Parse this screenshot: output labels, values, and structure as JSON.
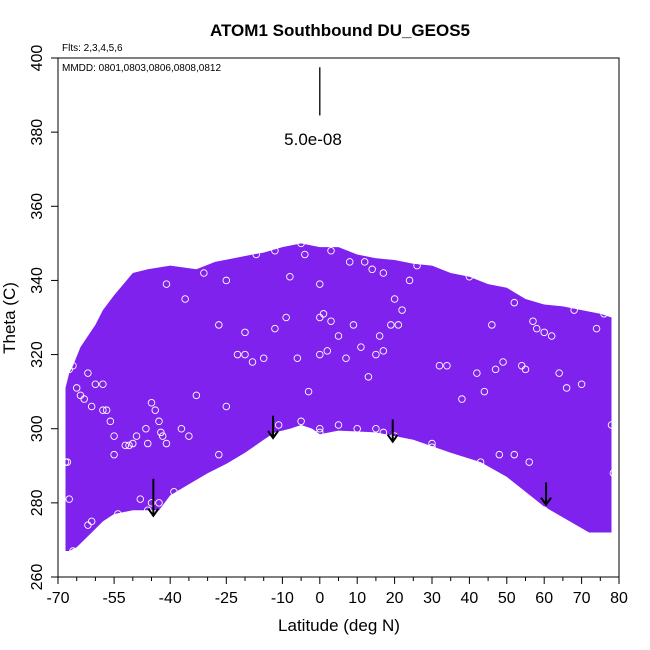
{
  "chart_data": {
    "type": "scatter",
    "title": "ATOM1 Southbound DU_GEOS5",
    "flights_label": "Flts: 2,3,4,5,6",
    "dates_label": "MMDD: 0801,0803,0806,0808,0812",
    "xlabel": "Latitude (deg N)",
    "ylabel": "Theta (C)",
    "xlim": [
      -70,
      80
    ],
    "ylim": [
      260,
      400
    ],
    "x_ticks": [
      -70,
      -55,
      -40,
      -25,
      -10,
      0,
      10,
      20,
      30,
      40,
      50,
      60,
      70,
      80
    ],
    "x_ticks_minor": [
      -65,
      -60,
      -50,
      -45,
      -35,
      -30,
      -20,
      -15,
      -5,
      5,
      15,
      25,
      35,
      45,
      55,
      65,
      75
    ],
    "y_ticks": [
      260,
      280,
      300,
      320,
      340,
      360,
      380,
      400
    ],
    "scale_label": "5.0e-08",
    "scale_bar": {
      "x": 0,
      "y_from": 384.5,
      "y_to": 397.5
    },
    "fill_color": "#7f22ee",
    "upper_boundary": [
      [
        -68,
        311
      ],
      [
        -67,
        315
      ],
      [
        -66,
        317
      ],
      [
        -64,
        322
      ],
      [
        -62,
        325
      ],
      [
        -60,
        328
      ],
      [
        -58,
        332
      ],
      [
        -55,
        336
      ],
      [
        -50,
        342
      ],
      [
        -46,
        343
      ],
      [
        -40,
        344
      ],
      [
        -33,
        343
      ],
      [
        -28,
        345
      ],
      [
        -23,
        346
      ],
      [
        -18,
        347
      ],
      [
        -15,
        347.5
      ],
      [
        -10,
        349
      ],
      [
        -5,
        350
      ],
      [
        0,
        349
      ],
      [
        5,
        349
      ],
      [
        10,
        347
      ],
      [
        15,
        346
      ],
      [
        20,
        345.5
      ],
      [
        25,
        344.5
      ],
      [
        30,
        344
      ],
      [
        35,
        342
      ],
      [
        40,
        341
      ],
      [
        45,
        339
      ],
      [
        50,
        338
      ],
      [
        55,
        335
      ],
      [
        60,
        333.5
      ],
      [
        65,
        333
      ],
      [
        70,
        332
      ],
      [
        75,
        331
      ],
      [
        78,
        330
      ]
    ],
    "lower_boundary": [
      [
        78,
        272
      ],
      [
        72,
        272
      ],
      [
        60,
        279
      ],
      [
        55,
        283
      ],
      [
        50,
        287
      ],
      [
        43,
        291
      ],
      [
        35,
        293.5
      ],
      [
        25,
        297
      ],
      [
        15,
        299
      ],
      [
        5,
        299.5
      ],
      [
        0,
        298.5
      ],
      [
        -2,
        300
      ],
      [
        -5,
        301
      ],
      [
        -8,
        300
      ],
      [
        -12,
        299
      ],
      [
        -15,
        297
      ],
      [
        -20,
        293.5
      ],
      [
        -25,
        290.5
      ],
      [
        -30,
        288
      ],
      [
        -35,
        285
      ],
      [
        -40,
        282
      ],
      [
        -43,
        278
      ],
      [
        -50,
        278
      ],
      [
        -55,
        277
      ],
      [
        -58,
        275
      ],
      [
        -61,
        272
      ],
      [
        -65,
        268
      ],
      [
        -67,
        267
      ],
      [
        -68,
        267
      ]
    ],
    "scatter_points": [
      [
        -68,
        291
      ],
      [
        -67.5,
        291
      ],
      [
        -67,
        316
      ],
      [
        -66,
        317
      ],
      [
        -65,
        311
      ],
      [
        -64,
        309
      ],
      [
        -63,
        308
      ],
      [
        -61,
        306
      ],
      [
        -58,
        305
      ],
      [
        -57,
        305
      ],
      [
        -55,
        298
      ],
      [
        -52,
        295.5
      ],
      [
        -51,
        295.5
      ],
      [
        -49,
        298
      ],
      [
        -46.5,
        300
      ],
      [
        -45,
        307
      ],
      [
        -44,
        305
      ],
      [
        -43,
        302
      ],
      [
        -42.5,
        299
      ],
      [
        -42,
        298
      ],
      [
        -41,
        296
      ],
      [
        -45,
        280
      ],
      [
        -43,
        280
      ],
      [
        -37,
        300
      ],
      [
        -35,
        298
      ],
      [
        -33,
        309
      ],
      [
        -30,
        286
      ],
      [
        -27,
        293
      ],
      [
        -25,
        306
      ],
      [
        -22,
        320
      ],
      [
        -20,
        326
      ],
      [
        -18,
        318
      ],
      [
        -15,
        319
      ],
      [
        -12,
        327
      ],
      [
        -9,
        330
      ],
      [
        -6,
        319
      ],
      [
        -3,
        310
      ],
      [
        0,
        320
      ],
      [
        0,
        330
      ],
      [
        1,
        331
      ],
      [
        2,
        321
      ],
      [
        3,
        329
      ],
      [
        5,
        325
      ],
      [
        7,
        319
      ],
      [
        9,
        328
      ],
      [
        11,
        322
      ],
      [
        13,
        314
      ],
      [
        15,
        320
      ],
      [
        16,
        325
      ],
      [
        17,
        321
      ],
      [
        19,
        328
      ],
      [
        20,
        335
      ],
      [
        22,
        332
      ],
      [
        24,
        340
      ],
      [
        26,
        344
      ],
      [
        30,
        296
      ],
      [
        32,
        317
      ],
      [
        34,
        317
      ],
      [
        36,
        292
      ],
      [
        38,
        308
      ],
      [
        40,
        341
      ],
      [
        42,
        315
      ],
      [
        44,
        310
      ],
      [
        46,
        328
      ],
      [
        47,
        316
      ],
      [
        48,
        293
      ],
      [
        49,
        318
      ],
      [
        52,
        334
      ],
      [
        54,
        317
      ],
      [
        55,
        316
      ],
      [
        56,
        291
      ],
      [
        57,
        329
      ],
      [
        58,
        327
      ],
      [
        60,
        326
      ],
      [
        62,
        325
      ],
      [
        64,
        315
      ],
      [
        66,
        311
      ],
      [
        68,
        332
      ],
      [
        70,
        312
      ],
      [
        74,
        327
      ],
      [
        76,
        331
      ],
      [
        78,
        301
      ],
      [
        78.5,
        288
      ],
      [
        79,
        287
      ],
      [
        79,
        273
      ],
      [
        -39,
        283
      ],
      [
        -40,
        278
      ],
      [
        -48,
        281
      ],
      [
        -54,
        277
      ],
      [
        -55,
        293
      ],
      [
        -56,
        302
      ],
      [
        -58,
        312
      ],
      [
        -60,
        312
      ],
      [
        -62,
        315
      ],
      [
        -50,
        296
      ],
      [
        -46,
        296
      ],
      [
        -41,
        339
      ],
      [
        -36,
        335
      ],
      [
        -31,
        342
      ],
      [
        -27,
        328
      ],
      [
        -25,
        340
      ],
      [
        -20,
        320
      ],
      [
        -17,
        347
      ],
      [
        -12,
        348
      ],
      [
        -8,
        341
      ],
      [
        -5,
        350
      ],
      [
        -4,
        347
      ],
      [
        0,
        339
      ],
      [
        3,
        348
      ],
      [
        8,
        345
      ],
      [
        12,
        345
      ],
      [
        14,
        343
      ],
      [
        17,
        342
      ],
      [
        21,
        328
      ],
      [
        -11,
        301
      ],
      [
        -5,
        302
      ],
      [
        0,
        300
      ],
      [
        0,
        299
      ],
      [
        5,
        301
      ],
      [
        10,
        300
      ],
      [
        15,
        300
      ],
      [
        17,
        299
      ],
      [
        20,
        298
      ],
      [
        30,
        295
      ],
      [
        43,
        291
      ],
      [
        52,
        293
      ],
      [
        60,
        278
      ],
      [
        -46,
        278
      ],
      [
        -61,
        275
      ],
      [
        -62,
        274
      ],
      [
        -66,
        267
      ],
      [
        -67,
        281
      ]
    ],
    "arrows": [
      {
        "x": -44.5,
        "y_from": 286.5,
        "y_to": 276.5
      },
      {
        "x": -12.5,
        "y_from": 303.5,
        "y_to": 297.5
      },
      {
        "x": 19.5,
        "y_from": 302.5,
        "y_to": 296.5
      },
      {
        "x": 60.5,
        "y_from": 285.5,
        "y_to": 279.5
      }
    ]
  }
}
